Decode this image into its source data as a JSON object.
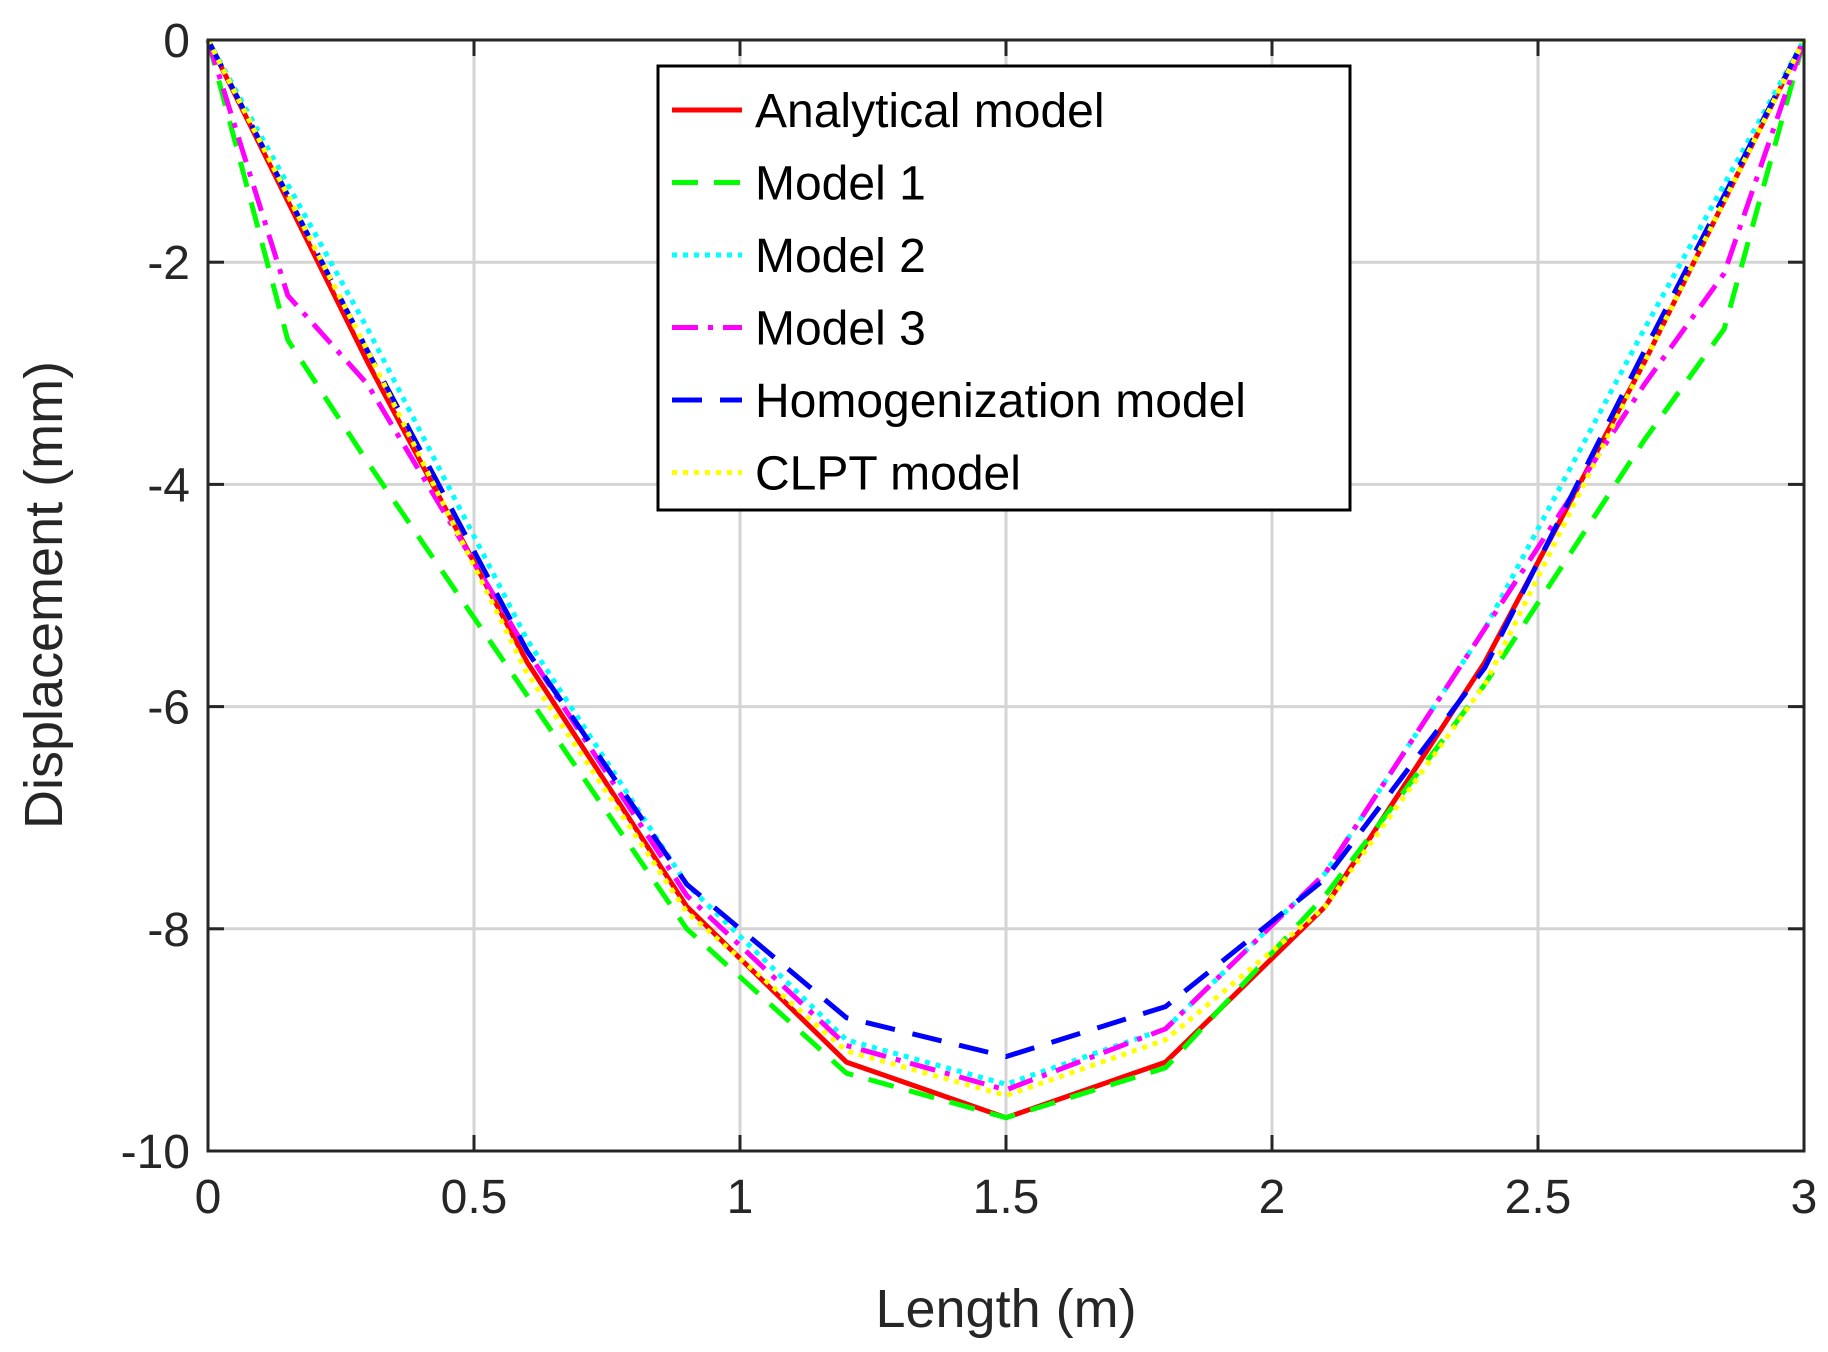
{
  "chart_data": {
    "type": "line",
    "title": "",
    "xlabel": "Length (m)",
    "ylabel": "Displacement (mm)",
    "xlim": [
      0,
      3
    ],
    "ylim": [
      -10,
      0
    ],
    "xticks": [
      0,
      0.5,
      1,
      1.5,
      2,
      2.5,
      3
    ],
    "xtick_labels": [
      "0",
      "0.5",
      "1",
      "1.5",
      "2",
      "2.5",
      "3"
    ],
    "yticks": [
      0,
      -2,
      -4,
      -6,
      -8,
      -10
    ],
    "ytick_labels": [
      "0",
      "-2",
      "-4",
      "-6",
      "-8",
      "-10"
    ],
    "grid": true,
    "legend_position": "top-center",
    "series": [
      {
        "name": "Analytical model",
        "color": "#ff0000",
        "dash": "solid",
        "x": [
          0,
          0.3,
          0.6,
          0.9,
          1.2,
          1.5,
          1.8,
          2.1,
          2.4,
          2.7,
          3.0
        ],
        "y": [
          0,
          -2.9,
          -5.6,
          -7.8,
          -9.2,
          -9.7,
          -9.2,
          -7.8,
          -5.6,
          -2.9,
          0
        ]
      },
      {
        "name": "Model 1",
        "color": "#00ff00",
        "dash": "dashed",
        "x": [
          0,
          0.15,
          0.3,
          0.6,
          0.9,
          1.2,
          1.5,
          1.8,
          2.1,
          2.4,
          2.7,
          2.85,
          3.0
        ],
        "y": [
          0,
          -2.7,
          -3.8,
          -5.9,
          -8.0,
          -9.3,
          -9.7,
          -9.25,
          -7.7,
          -5.8,
          -3.6,
          -2.6,
          0
        ]
      },
      {
        "name": "Model 2",
        "color": "#00ffff",
        "dash": "dotted",
        "x": [
          0,
          0.3,
          0.6,
          0.9,
          1.2,
          1.5,
          1.8,
          2.1,
          2.4,
          2.7,
          3.0
        ],
        "y": [
          0,
          -2.6,
          -5.4,
          -7.6,
          -9.0,
          -9.4,
          -8.9,
          -7.5,
          -5.3,
          -2.6,
          0
        ]
      },
      {
        "name": "Model 3",
        "color": "#ff00ff",
        "dash": "dashdot",
        "x": [
          0,
          0.15,
          0.3,
          0.6,
          0.9,
          1.2,
          1.5,
          1.8,
          2.1,
          2.4,
          2.7,
          2.85,
          3.0
        ],
        "y": [
          0,
          -2.3,
          -3.1,
          -5.5,
          -7.7,
          -9.05,
          -9.45,
          -8.9,
          -7.5,
          -5.3,
          -3.1,
          -2.1,
          0
        ]
      },
      {
        "name": "Homogenization model",
        "color": "#0000ff",
        "dash": "longdash",
        "x": [
          0,
          0.3,
          0.6,
          0.9,
          1.2,
          1.5,
          1.8,
          2.1,
          2.4,
          2.7,
          3.0
        ],
        "y": [
          0,
          -2.8,
          -5.5,
          -7.6,
          -8.8,
          -9.15,
          -8.7,
          -7.55,
          -5.65,
          -2.8,
          0
        ]
      },
      {
        "name": "CLPT model",
        "color": "#ffff00",
        "dash": "dotted",
        "x": [
          0,
          0.3,
          0.6,
          0.9,
          1.2,
          1.5,
          1.8,
          2.1,
          2.4,
          2.7,
          3.0
        ],
        "y": [
          0,
          -2.8,
          -5.7,
          -7.85,
          -9.1,
          -9.5,
          -9.0,
          -7.8,
          -5.8,
          -2.9,
          0
        ]
      }
    ]
  }
}
